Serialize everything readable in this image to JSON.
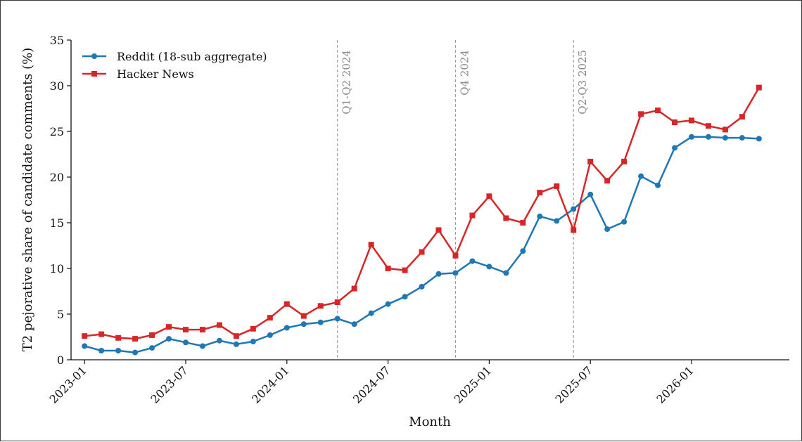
{
  "chart_data": {
    "type": "line",
    "xlabel": "Month",
    "ylabel": "T2 pejorative share of candidate comments (%)",
    "ylim": [
      0,
      35
    ],
    "yticks": [
      0,
      5,
      10,
      15,
      20,
      25,
      30,
      35
    ],
    "x_start": "2023-01",
    "xlim_months": [
      -0.8,
      41.8
    ],
    "xticks": [
      {
        "label": "2023-01",
        "month_index": 0
      },
      {
        "label": "2023-07",
        "month_index": 6
      },
      {
        "label": "2024-01",
        "month_index": 12
      },
      {
        "label": "2024-07",
        "month_index": 18
      },
      {
        "label": "2025-01",
        "month_index": 24
      },
      {
        "label": "2025-07",
        "month_index": 30
      },
      {
        "label": "2026-01",
        "month_index": 36
      }
    ],
    "legend_position": "upper-left",
    "grid": false,
    "annotations": [
      {
        "label": "Q1-Q2 2024",
        "month_index": 15
      },
      {
        "label": "Q4 2024",
        "month_index": 22
      },
      {
        "label": "Q2-Q3 2025",
        "month_index": 29
      }
    ],
    "series": [
      {
        "name": "Reddit (18-sub aggregate)",
        "color": "#1f77b4",
        "marker": "circle",
        "values": [
          1.5,
          1.0,
          1.0,
          0.8,
          1.3,
          2.3,
          1.9,
          1.5,
          2.1,
          1.7,
          2.0,
          2.7,
          3.5,
          3.9,
          4.1,
          4.5,
          3.9,
          5.1,
          6.1,
          6.9,
          8.0,
          9.4,
          9.5,
          10.8,
          10.2,
          9.5,
          11.9,
          15.7,
          15.2,
          16.5,
          18.1,
          14.3,
          15.1,
          20.1,
          19.1,
          23.2,
          24.4,
          24.4,
          24.3,
          24.3,
          24.2
        ]
      },
      {
        "name": "Hacker News",
        "color": "#d62728",
        "marker": "square",
        "values": [
          2.6,
          2.8,
          2.4,
          2.3,
          2.7,
          3.6,
          3.3,
          3.3,
          3.8,
          2.6,
          3.4,
          4.6,
          6.1,
          4.8,
          5.9,
          6.3,
          7.8,
          12.6,
          10.0,
          9.8,
          11.8,
          14.2,
          11.4,
          15.8,
          17.9,
          15.5,
          15.0,
          18.3,
          19.0,
          14.2,
          21.7,
          19.6,
          21.7,
          26.9,
          27.3,
          26.0,
          26.2,
          25.6,
          25.2,
          26.6,
          29.8
        ]
      }
    ]
  }
}
